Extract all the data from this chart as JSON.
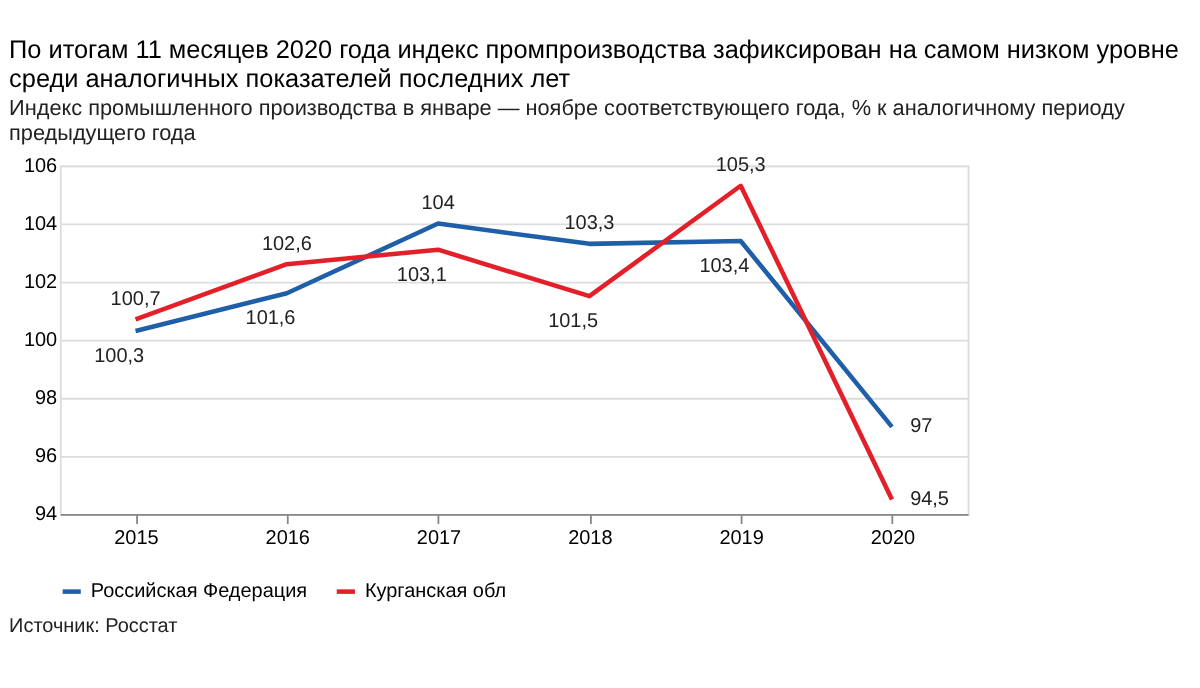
{
  "chart_data": {
    "type": "line",
    "title": "По итогам 11 месяцев 2020 года индекс промпроизводства зафиксирован на самом низком уровне среди аналогичных показателей последних лет",
    "subtitle": "Индекс промышленного производства в январе — ноябре соответствующего года, % к аналогичному периоду предыдущего года",
    "categories": [
      "2015",
      "2016",
      "2017",
      "2018",
      "2019",
      "2020"
    ],
    "series": [
      {
        "name": "Российская Федерация",
        "color": "#1f5fa8",
        "values": [
          100.3,
          101.6,
          104,
          103.3,
          103.4,
          97
        ],
        "value_labels": [
          "100,3",
          "101,6",
          "104",
          "103,3",
          "103,4",
          "97"
        ]
      },
      {
        "name": "Курганская обл",
        "color": "#e3202a",
        "values": [
          100.7,
          102.6,
          103.1,
          101.5,
          105.3,
          94.5
        ],
        "value_labels": [
          "100,7",
          "102,6",
          "103,1",
          "101,5",
          "105,3",
          "94,5"
        ]
      }
    ],
    "ylim": [
      94,
      106
    ],
    "yticks": [
      94,
      96,
      98,
      100,
      102,
      104,
      106
    ],
    "grid": "y",
    "legend": "bottom left",
    "marker": "none",
    "line_style": "solid",
    "annotations": [
      "Источник: Росстат"
    ]
  }
}
